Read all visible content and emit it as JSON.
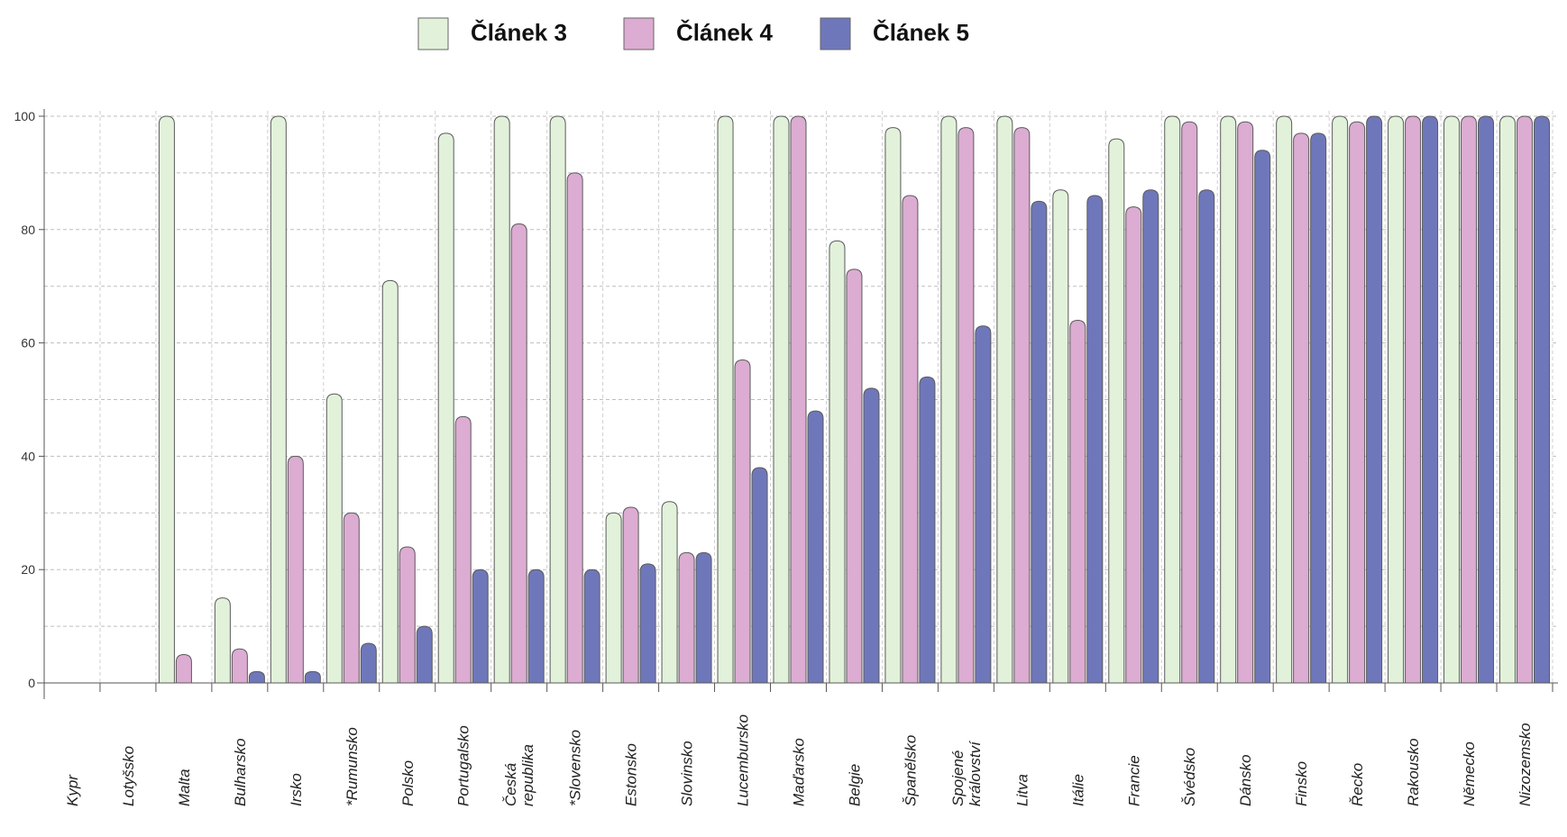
{
  "chart_data": {
    "type": "bar",
    "categories": [
      "Kypr",
      "Lotyšsko",
      "Malta",
      "Bulharsko",
      "Irsko",
      "*Rumunsko",
      "Polsko",
      "Portugalsko",
      "Česká republika",
      "*Slovensko",
      "Estonsko",
      "Slovinsko",
      "Lucembursko",
      "Maďarsko",
      "Belgie",
      "Španělsko",
      "Spojené království",
      "Litva",
      "Itálie",
      "Francie",
      "Švédsko",
      "Dánsko",
      "Finsko",
      "Řecko",
      "Rakousko",
      "Německo",
      "Nizozemsko"
    ],
    "series": [
      {
        "name": "Článek 3",
        "color": "#e2f2da",
        "values": [
          0,
          0,
          100,
          15,
          100,
          51,
          71,
          97,
          100,
          100,
          30,
          32,
          100,
          100,
          78,
          98,
          100,
          100,
          87,
          96,
          100,
          100,
          100,
          100,
          100,
          100,
          100
        ]
      },
      {
        "name": "Článek 4",
        "color": "#dcacd2",
        "values": [
          0,
          0,
          5,
          6,
          40,
          30,
          24,
          47,
          81,
          90,
          31,
          23,
          57,
          100,
          73,
          86,
          98,
          98,
          64,
          84,
          99,
          99,
          97,
          99,
          100,
          100,
          100
        ]
      },
      {
        "name": "Článek 5",
        "color": "#6f77bb",
        "values": [
          0,
          0,
          0,
          2,
          2,
          7,
          10,
          20,
          20,
          20,
          21,
          23,
          38,
          48,
          52,
          54,
          63,
          85,
          86,
          87,
          87,
          94,
          97,
          100,
          100,
          100,
          100
        ]
      }
    ],
    "yticks": [
      0,
      20,
      40,
      60,
      80,
      100
    ],
    "ylim": [
      0,
      100
    ],
    "grid": true,
    "legend": "top-center",
    "title": "",
    "xlabel": "",
    "ylabel": ""
  }
}
